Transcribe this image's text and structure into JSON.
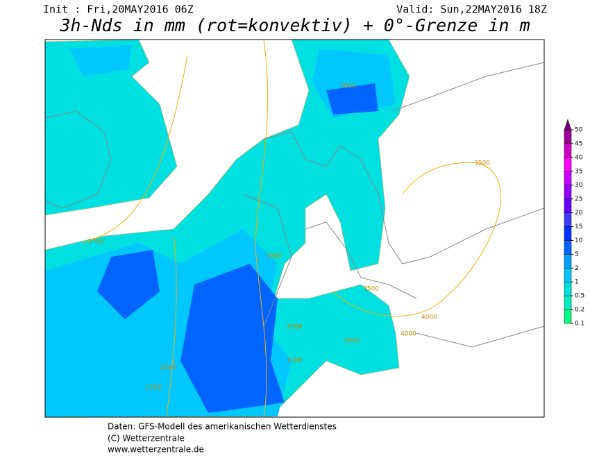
{
  "header": {
    "init": "Init : Fri,20MAY2016 06Z",
    "valid": "Valid: Sun,22MAY2016 18Z",
    "title": "3h-Nds in mm (rot=konvektiv) + 0°-Grenze in m"
  },
  "colorbar": {
    "levels": [
      0.1,
      0.2,
      0.5,
      1,
      2,
      5,
      10,
      15,
      20,
      25,
      30,
      35,
      40,
      45,
      50
    ],
    "colors": [
      "#00ff80",
      "#00f0c0",
      "#00e0e0",
      "#00c8ff",
      "#00a0ff",
      "#0064ff",
      "#0032ff",
      "#3c3cff",
      "#6400ff",
      "#9600ff",
      "#c800ff",
      "#ff00ff",
      "#d200c8",
      "#a00096",
      "#780078"
    ]
  },
  "contour_labels": [
    "3000",
    "3500",
    "1750",
    "3000",
    "3500",
    "4000",
    "4000",
    "3500",
    "3500",
    "3000",
    "2000",
    "1750"
  ],
  "footer": {
    "line1": "Daten: GFS-Modell des amerikanischen Wetterdienstes",
    "line2": "(C) Wetterzentrale",
    "line3": "www.wetterzentrale.de"
  }
}
